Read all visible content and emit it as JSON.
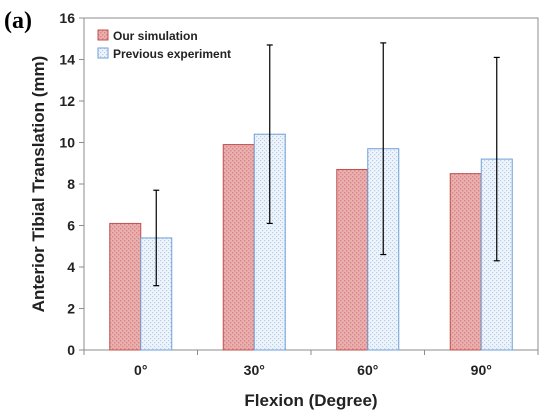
{
  "panel_label": "(a)",
  "chart_data": {
    "type": "bar",
    "categories": [
      "0°",
      "30°",
      "60°",
      "90°"
    ],
    "series": [
      {
        "name": "Our simulation",
        "values": [
          6.1,
          9.9,
          8.7,
          8.5
        ],
        "fill": "#e8a9a9",
        "stroke": "#c0504d",
        "pattern": "dots"
      },
      {
        "name": "Previous experiment",
        "values": [
          5.4,
          10.4,
          9.7,
          9.2
        ],
        "error": [
          2.3,
          4.3,
          5.1,
          4.9
        ],
        "fill": "#e9f1fb",
        "stroke": "#6f9fd8",
        "pattern": "fine-dots"
      }
    ],
    "xlabel": "Flexion (Degree)",
    "ylabel": "Anterior Tibial Translation (mm)",
    "ylim": [
      0,
      16
    ],
    "yticks": [
      "0",
      "2",
      "4",
      "6",
      "8",
      "10",
      "12",
      "14",
      "16"
    ],
    "grid": false,
    "legend": "top-left"
  }
}
